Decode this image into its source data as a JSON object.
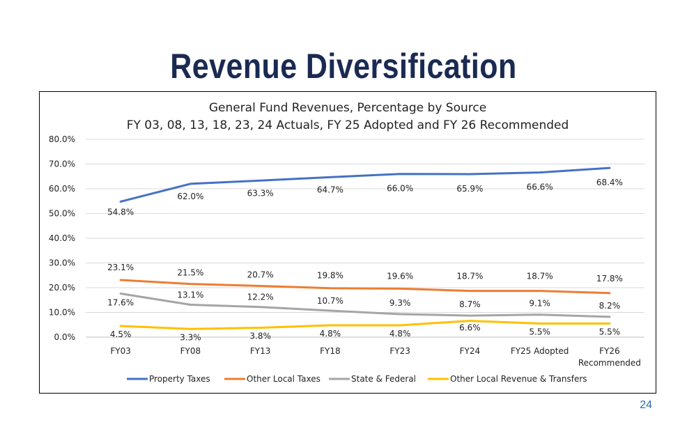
{
  "slide": {
    "title": "Revenue Diversification",
    "page_number": "24"
  },
  "colors": {
    "title": "#1a2a52",
    "property_taxes": "#4472c4",
    "other_local_taxes": "#ed7d31",
    "state_federal": "#a5a5a5",
    "other_local_revenue": "#ffc000"
  },
  "chart_data": {
    "type": "line",
    "title": "General Fund Revenues, Percentage by Source",
    "subtitle": "FY 03, 08, 13, 18, 23, 24 Actuals, FY 25 Adopted and FY 26 Recommended",
    "categories": [
      "FY03",
      "FY08",
      "FY13",
      "FY18",
      "FY23",
      "FY24",
      "FY25 Adopted",
      "FY26\nRecommended"
    ],
    "y_ticks": [
      "0.0%",
      "10.0%",
      "20.0%",
      "30.0%",
      "40.0%",
      "50.0%",
      "60.0%",
      "70.0%",
      "80.0%"
    ],
    "ylim": [
      0,
      80
    ],
    "grid": true,
    "legend_position": "bottom",
    "series": [
      {
        "name": "Property Taxes",
        "color": "#4472c4",
        "values": [
          54.8,
          62.0,
          63.3,
          64.7,
          66.0,
          65.9,
          66.6,
          68.4
        ],
        "labels": [
          "54.8%",
          "62.0%",
          "63.3%",
          "64.7%",
          "66.0%",
          "65.9%",
          "66.6%",
          "68.4%"
        ]
      },
      {
        "name": "Other Local Taxes",
        "color": "#ed7d31",
        "values": [
          23.1,
          21.5,
          20.7,
          19.8,
          19.6,
          18.7,
          18.7,
          17.8
        ],
        "labels": [
          "23.1%",
          "21.5%",
          "20.7%",
          "19.8%",
          "19.6%",
          "18.7%",
          "18.7%",
          "17.8%"
        ]
      },
      {
        "name": "State & Federal",
        "color": "#a5a5a5",
        "values": [
          17.6,
          13.1,
          12.2,
          10.7,
          9.3,
          8.7,
          9.1,
          8.2
        ],
        "labels": [
          "17.6%",
          "13.1%",
          "12.2%",
          "10.7%",
          "9.3%",
          "8.7%",
          "9.1%",
          "8.2%"
        ]
      },
      {
        "name": "Other Local Revenue & Transfers",
        "color": "#ffc000",
        "values": [
          4.5,
          3.3,
          3.8,
          4.8,
          4.8,
          6.6,
          5.5,
          5.5
        ],
        "labels": [
          "4.5%",
          "3.3%",
          "3.8%",
          "4.8%",
          "4.8%",
          "6.6%",
          "5.5%",
          "5.5%"
        ]
      }
    ]
  }
}
